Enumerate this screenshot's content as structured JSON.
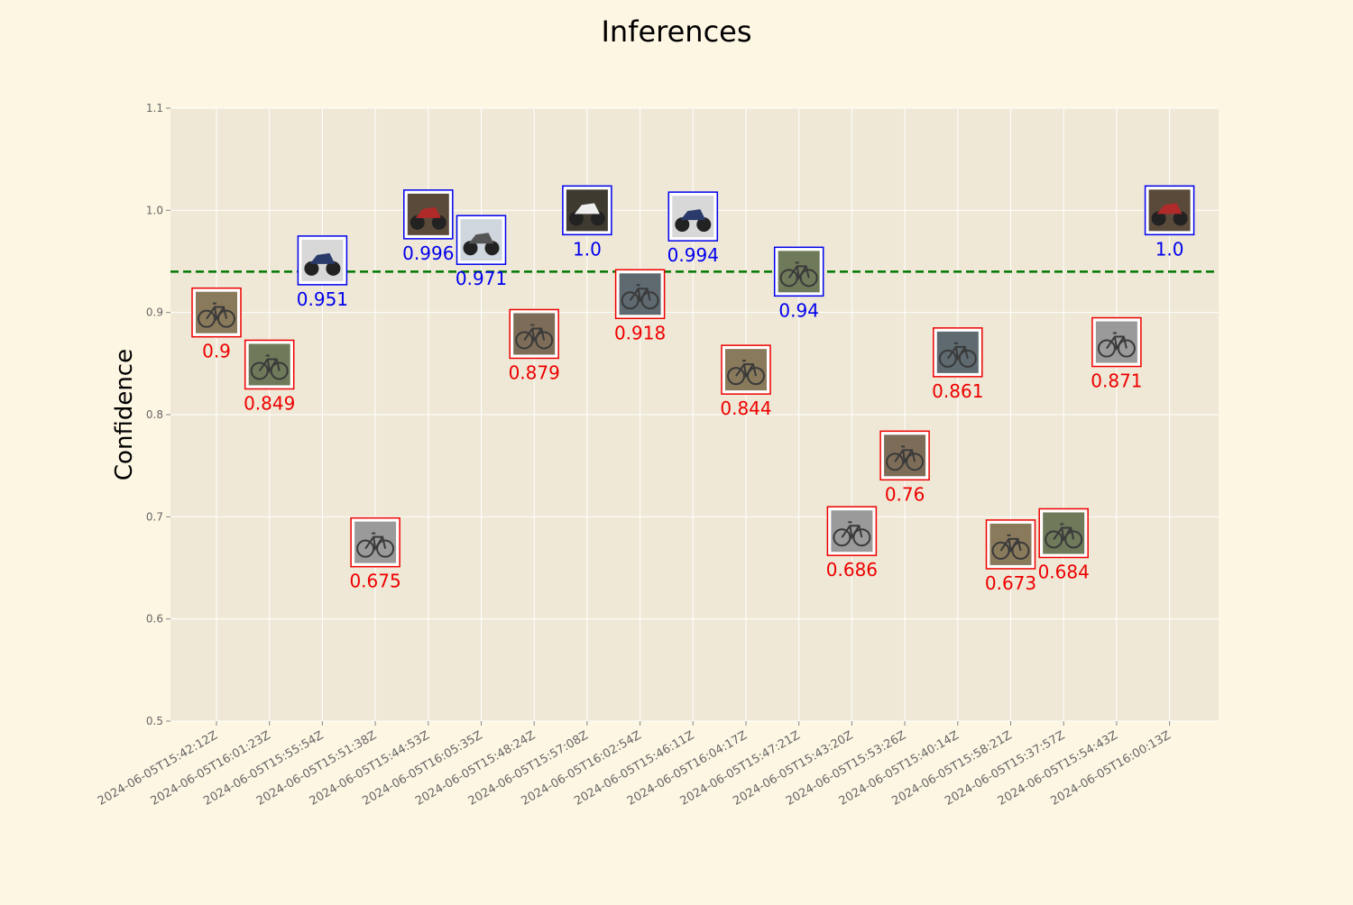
{
  "chart_data": {
    "type": "scatter",
    "title": "Inferences",
    "xlabel": "",
    "ylabel": "Confidence",
    "ylim": [
      0.5,
      1.1
    ],
    "yticks": [
      0.5,
      0.6,
      0.7,
      0.8,
      0.9,
      1.0,
      1.1
    ],
    "ytick_labels": [
      "0.5",
      "0.6",
      "0.7",
      "0.8",
      "0.9",
      "1.0",
      "1.1"
    ],
    "grid": true,
    "threshold": 0.94,
    "threshold_style": "dashed",
    "threshold_color": "#007700",
    "colors": {
      "above_threshold": "#0000ee",
      "below_threshold": "#ee0000",
      "axes_background": "#efe8d6",
      "figure_background": "#fdf6e3",
      "grid": "#ffffff",
      "tick_text": "#666666"
    },
    "x": [
      "2024-06-05T15:42:12Z",
      "2024-06-05T16:01:23Z",
      "2024-06-05T15:55:54Z",
      "2024-06-05T15:51:38Z",
      "2024-06-05T15:44:53Z",
      "2024-06-05T16:05:35Z",
      "2024-06-05T15:48:24Z",
      "2024-06-05T15:57:08Z",
      "2024-06-05T16:02:54Z",
      "2024-06-05T15:46:11Z",
      "2024-06-05T16:04:17Z",
      "2024-06-05T15:47:21Z",
      "2024-06-05T15:43:20Z",
      "2024-06-05T15:53:26Z",
      "2024-06-05T15:40:14Z",
      "2024-06-05T15:58:21Z",
      "2024-06-05T15:37:57Z",
      "2024-06-05T15:54:43Z",
      "2024-06-05T16:00:13Z"
    ],
    "points": [
      {
        "x": "2024-06-05T15:42:12Z",
        "y": 0.9,
        "label": "0.9",
        "thumb": "bicycle"
      },
      {
        "x": "2024-06-05T16:01:23Z",
        "y": 0.849,
        "label": "0.849",
        "thumb": "bicycle"
      },
      {
        "x": "2024-06-05T15:55:54Z",
        "y": 0.951,
        "label": "0.951",
        "thumb": "motorcycle"
      },
      {
        "x": "2024-06-05T15:51:38Z",
        "y": 0.675,
        "label": "0.675",
        "thumb": "bicycle"
      },
      {
        "x": "2024-06-05T15:44:53Z",
        "y": 0.996,
        "label": "0.996",
        "thumb": "motorcycle"
      },
      {
        "x": "2024-06-05T16:05:35Z",
        "y": 0.971,
        "label": "0.971",
        "thumb": "motorcycle"
      },
      {
        "x": "2024-06-05T15:48:24Z",
        "y": 0.879,
        "label": "0.879",
        "thumb": "bicycle"
      },
      {
        "x": "2024-06-05T15:57:08Z",
        "y": 1.0,
        "label": "1.0",
        "thumb": "motorcycle"
      },
      {
        "x": "2024-06-05T16:02:54Z",
        "y": 0.918,
        "label": "0.918",
        "thumb": "bicycle"
      },
      {
        "x": "2024-06-05T15:46:11Z",
        "y": 0.994,
        "label": "0.994",
        "thumb": "motorcycle"
      },
      {
        "x": "2024-06-05T16:04:17Z",
        "y": 0.844,
        "label": "0.844",
        "thumb": "bicycle"
      },
      {
        "x": "2024-06-05T15:47:21Z",
        "y": 0.94,
        "label": "0.94",
        "thumb": "bicycle"
      },
      {
        "x": "2024-06-05T15:43:20Z",
        "y": 0.686,
        "label": "0.686",
        "thumb": "bicycle"
      },
      {
        "x": "2024-06-05T15:53:26Z",
        "y": 0.76,
        "label": "0.76",
        "thumb": "bicycle"
      },
      {
        "x": "2024-06-05T15:40:14Z",
        "y": 0.861,
        "label": "0.861",
        "thumb": "bicycle"
      },
      {
        "x": "2024-06-05T15:58:21Z",
        "y": 0.673,
        "label": "0.673",
        "thumb": "bicycle"
      },
      {
        "x": "2024-06-05T15:37:57Z",
        "y": 0.684,
        "label": "0.684",
        "thumb": "bicycle"
      },
      {
        "x": "2024-06-05T15:54:43Z",
        "y": 0.871,
        "label": "0.871",
        "thumb": "bicycle"
      },
      {
        "x": "2024-06-05T16:00:13Z",
        "y": 1.0,
        "label": "1.0",
        "thumb": "motorcycle"
      }
    ]
  }
}
